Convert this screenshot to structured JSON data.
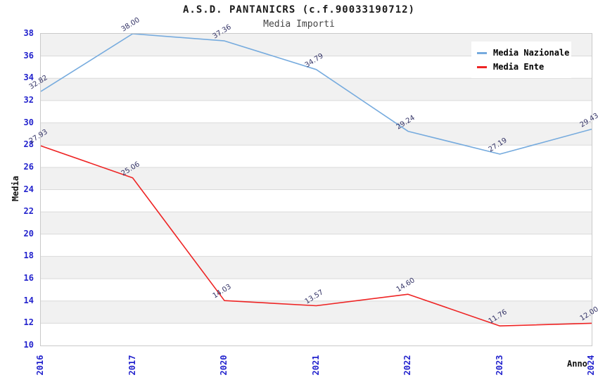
{
  "header": {
    "title": "A.S.D. PANTANICRS (c.f.90033190712)",
    "subtitle": "Media Importi"
  },
  "colors": {
    "nazionale_line": "#76abde",
    "ente_line": "#ee2424",
    "tick_label": "#2323cd",
    "data_label": "#333366",
    "band_gray": "#f1f1f1",
    "band_white": "#ffffff",
    "gridline": "#dadada",
    "plot_border": "#c9c9c9"
  },
  "legend": {
    "items": [
      {
        "label": "Media Nazionale",
        "color": "#76abde"
      },
      {
        "label": "Media Ente",
        "color": "#ee2424"
      }
    ]
  },
  "chart_data": {
    "type": "line",
    "title": "A.S.D. PANTANICRS (c.f.90033190712)",
    "subtitle": "Media Importi",
    "xlabel": "Anno",
    "ylabel": "Media",
    "categories": [
      "2016",
      "2017",
      "2020",
      "2021",
      "2022",
      "2023",
      "2024"
    ],
    "series": [
      {
        "name": "Media Nazionale",
        "color": "#76abde",
        "values": [
          32.82,
          38.0,
          37.36,
          34.79,
          29.24,
          27.19,
          29.43
        ],
        "labels": [
          "32.82",
          "38.00",
          "37.36",
          "34.79",
          "29.24",
          "27.19",
          "29.43"
        ]
      },
      {
        "name": "Media Ente",
        "color": "#ee2424",
        "values": [
          27.93,
          25.06,
          14.03,
          13.57,
          14.6,
          11.76,
          12.0
        ],
        "labels": [
          "27.93",
          "25.06",
          "14.03",
          "13.57",
          "14.60",
          "11.76",
          "12.00"
        ]
      }
    ],
    "ylim": [
      10,
      38
    ],
    "yticks": [
      10,
      12,
      14,
      16,
      18,
      20,
      22,
      24,
      26,
      28,
      30,
      32,
      34,
      36,
      38
    ],
    "grid": true,
    "alternating_bands": true,
    "legend_position": "top-right",
    "data_labels_shown": true
  }
}
